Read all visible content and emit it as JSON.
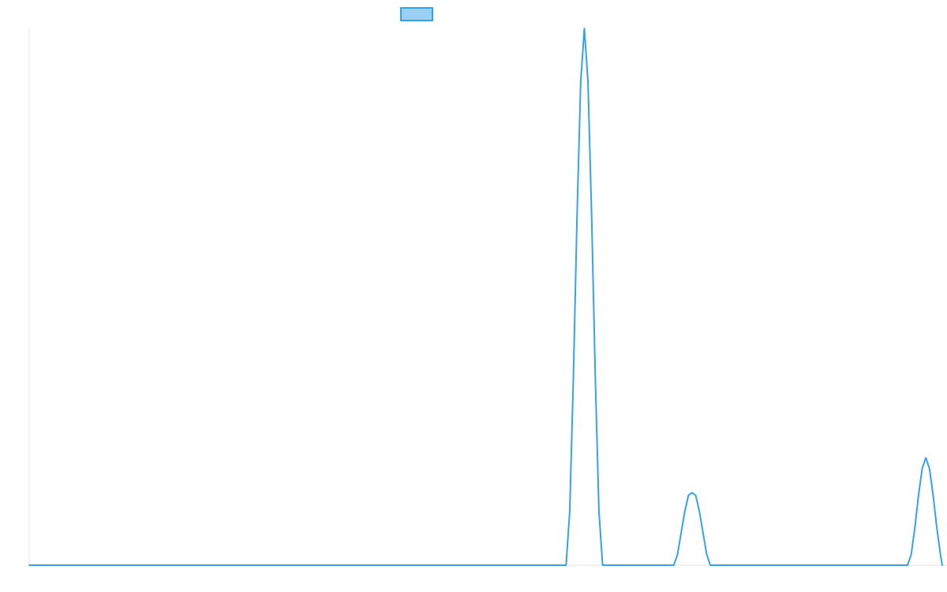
{
  "chart_data": {
    "type": "line",
    "title": "",
    "xlabel": "",
    "ylabel": "",
    "grid": false,
    "legend": {
      "placement": "top-center",
      "label": ""
    },
    "xlim": [
      0,
      100
    ],
    "ylim": [
      0,
      100
    ],
    "series": [
      {
        "color": "#36a2eb",
        "fill_color": "#9ad0f5",
        "x": [
          0,
          58.8,
          59.2,
          59.6,
          60.0,
          60.4,
          60.8,
          61.2,
          61.6,
          62.0,
          62.4,
          62.8,
          70.6,
          71.0,
          71.4,
          71.8,
          72.2,
          72.6,
          73.0,
          73.4,
          73.8,
          74.2,
          74.6,
          96.2,
          96.6,
          97.0,
          97.4,
          97.8,
          98.2,
          98.6,
          99.0,
          99.4,
          99.8,
          100
        ],
        "y": [
          0,
          0,
          10,
          35,
          65,
          90,
          100,
          90,
          65,
          35,
          10,
          0,
          0,
          2,
          6,
          10,
          13,
          13.5,
          13,
          10,
          6,
          2,
          0,
          0,
          2,
          7,
          13,
          18,
          20,
          18,
          13,
          7,
          2,
          0
        ]
      }
    ]
  }
}
